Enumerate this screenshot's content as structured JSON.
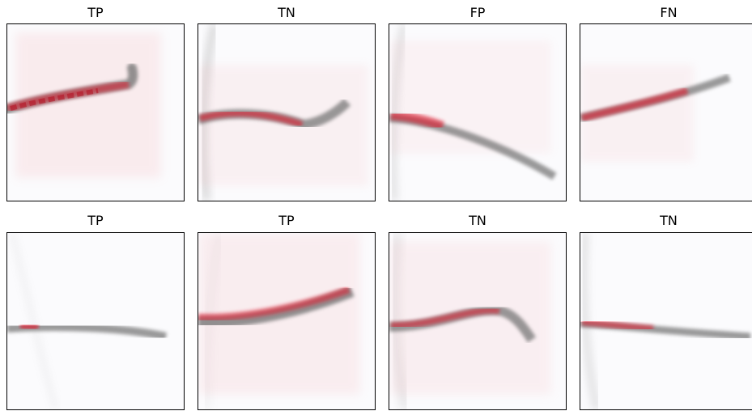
{
  "figure": {
    "panels": [
      {
        "label": "TP"
      },
      {
        "label": "TN"
      },
      {
        "label": "FP"
      },
      {
        "label": "FN"
      },
      {
        "label": "TP"
      },
      {
        "label": "TP"
      },
      {
        "label": "TN"
      },
      {
        "label": "TN"
      }
    ]
  },
  "colors": {
    "background": "#fbfbfd",
    "specimen": "#6f6f6f",
    "heatmap": "#e0182a",
    "frame": "#000000"
  }
}
